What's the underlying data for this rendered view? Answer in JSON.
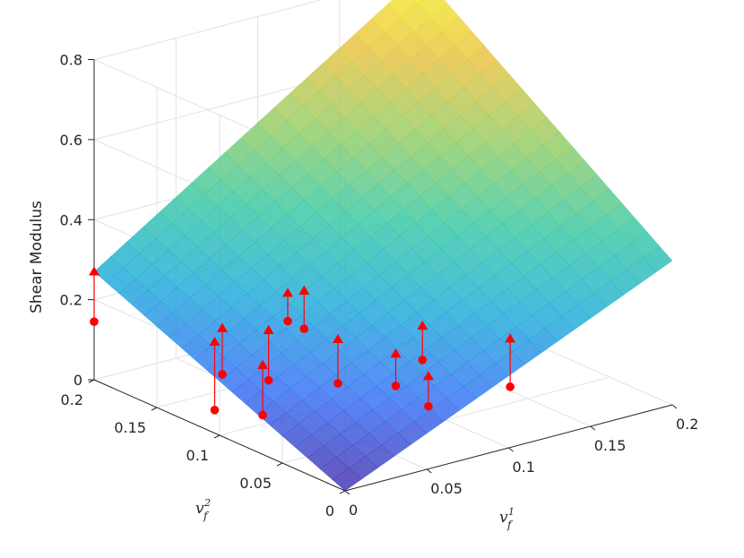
{
  "chart_data": {
    "type": "surface3d",
    "title": "",
    "zlabel": "Shear Modulus",
    "xlabel": {
      "base": "v",
      "sub": "f",
      "sup": "1"
    },
    "ylabel": {
      "base": "v",
      "sub": "f",
      "sup": "2"
    },
    "xlim": [
      0,
      0.2
    ],
    "ylim": [
      0,
      0.2
    ],
    "zlim": [
      0,
      0.8
    ],
    "xticks": [
      0,
      0.05,
      0.1,
      0.15,
      0.2
    ],
    "xtick_labels": [
      "0",
      "0.05",
      "0.1",
      "0.15",
      "0.2"
    ],
    "yticks": [
      0,
      0.05,
      0.1,
      0.15,
      0.2
    ],
    "ytick_labels": [
      "0",
      "0.05",
      "0.1",
      "0.15",
      "0.2"
    ],
    "zticks": [
      0,
      0.2,
      0.4,
      0.6,
      0.8
    ],
    "ztick_labels": [
      "0",
      "0.2",
      "0.4",
      "0.6",
      "0.8"
    ],
    "grid": true,
    "surface": {
      "colormap": [
        "#3e26a8",
        "#2f6bf5",
        "#18a8d9",
        "#2fc6a2",
        "#8ecb60",
        "#e7c139",
        "#f5f120"
      ],
      "z_corners": {
        "x0_y0": 0.0,
        "x1_y0": 0.36,
        "x0_y1": 0.27,
        "x1_y1": 0.8
      },
      "alpha": 0.8
    },
    "points": [
      {
        "x": 0.0,
        "y": 0.2,
        "z_data": 0.145,
        "z_fit": 0.27
      },
      {
        "x": 0.02,
        "y": 0.13,
        "z_data": 0.0,
        "z_fit": 0.17
      },
      {
        "x": 0.04,
        "y": 0.15,
        "z_data": 0.04,
        "z_fit": 0.155
      },
      {
        "x": 0.034,
        "y": 0.11,
        "z_data": 0.0,
        "z_fit": 0.125
      },
      {
        "x": 0.056,
        "y": 0.134,
        "z_data": 0.03,
        "z_fit": 0.155
      },
      {
        "x": 0.08,
        "y": 0.15,
        "z_data": 0.13,
        "z_fit": 0.2
      },
      {
        "x": 0.09,
        "y": 0.15,
        "z_data": 0.1,
        "z_fit": 0.195
      },
      {
        "x": 0.08,
        "y": 0.11,
        "z_data": 0.03,
        "z_fit": 0.14
      },
      {
        "x": 0.1,
        "y": 0.09,
        "z_data": 0.03,
        "z_fit": 0.11
      },
      {
        "x": 0.124,
        "y": 0.1,
        "z_data": 0.055,
        "z_fit": 0.14
      },
      {
        "x": 0.1,
        "y": 0.064,
        "z_data": 0.015,
        "z_fit": 0.09
      },
      {
        "x": 0.15,
        "y": 0.064,
        "z_data": 0.01,
        "z_fit": 0.13
      }
    ],
    "point_style": {
      "marker_data": "circle",
      "marker_fit": "triangle",
      "color": "#ff0000"
    }
  }
}
